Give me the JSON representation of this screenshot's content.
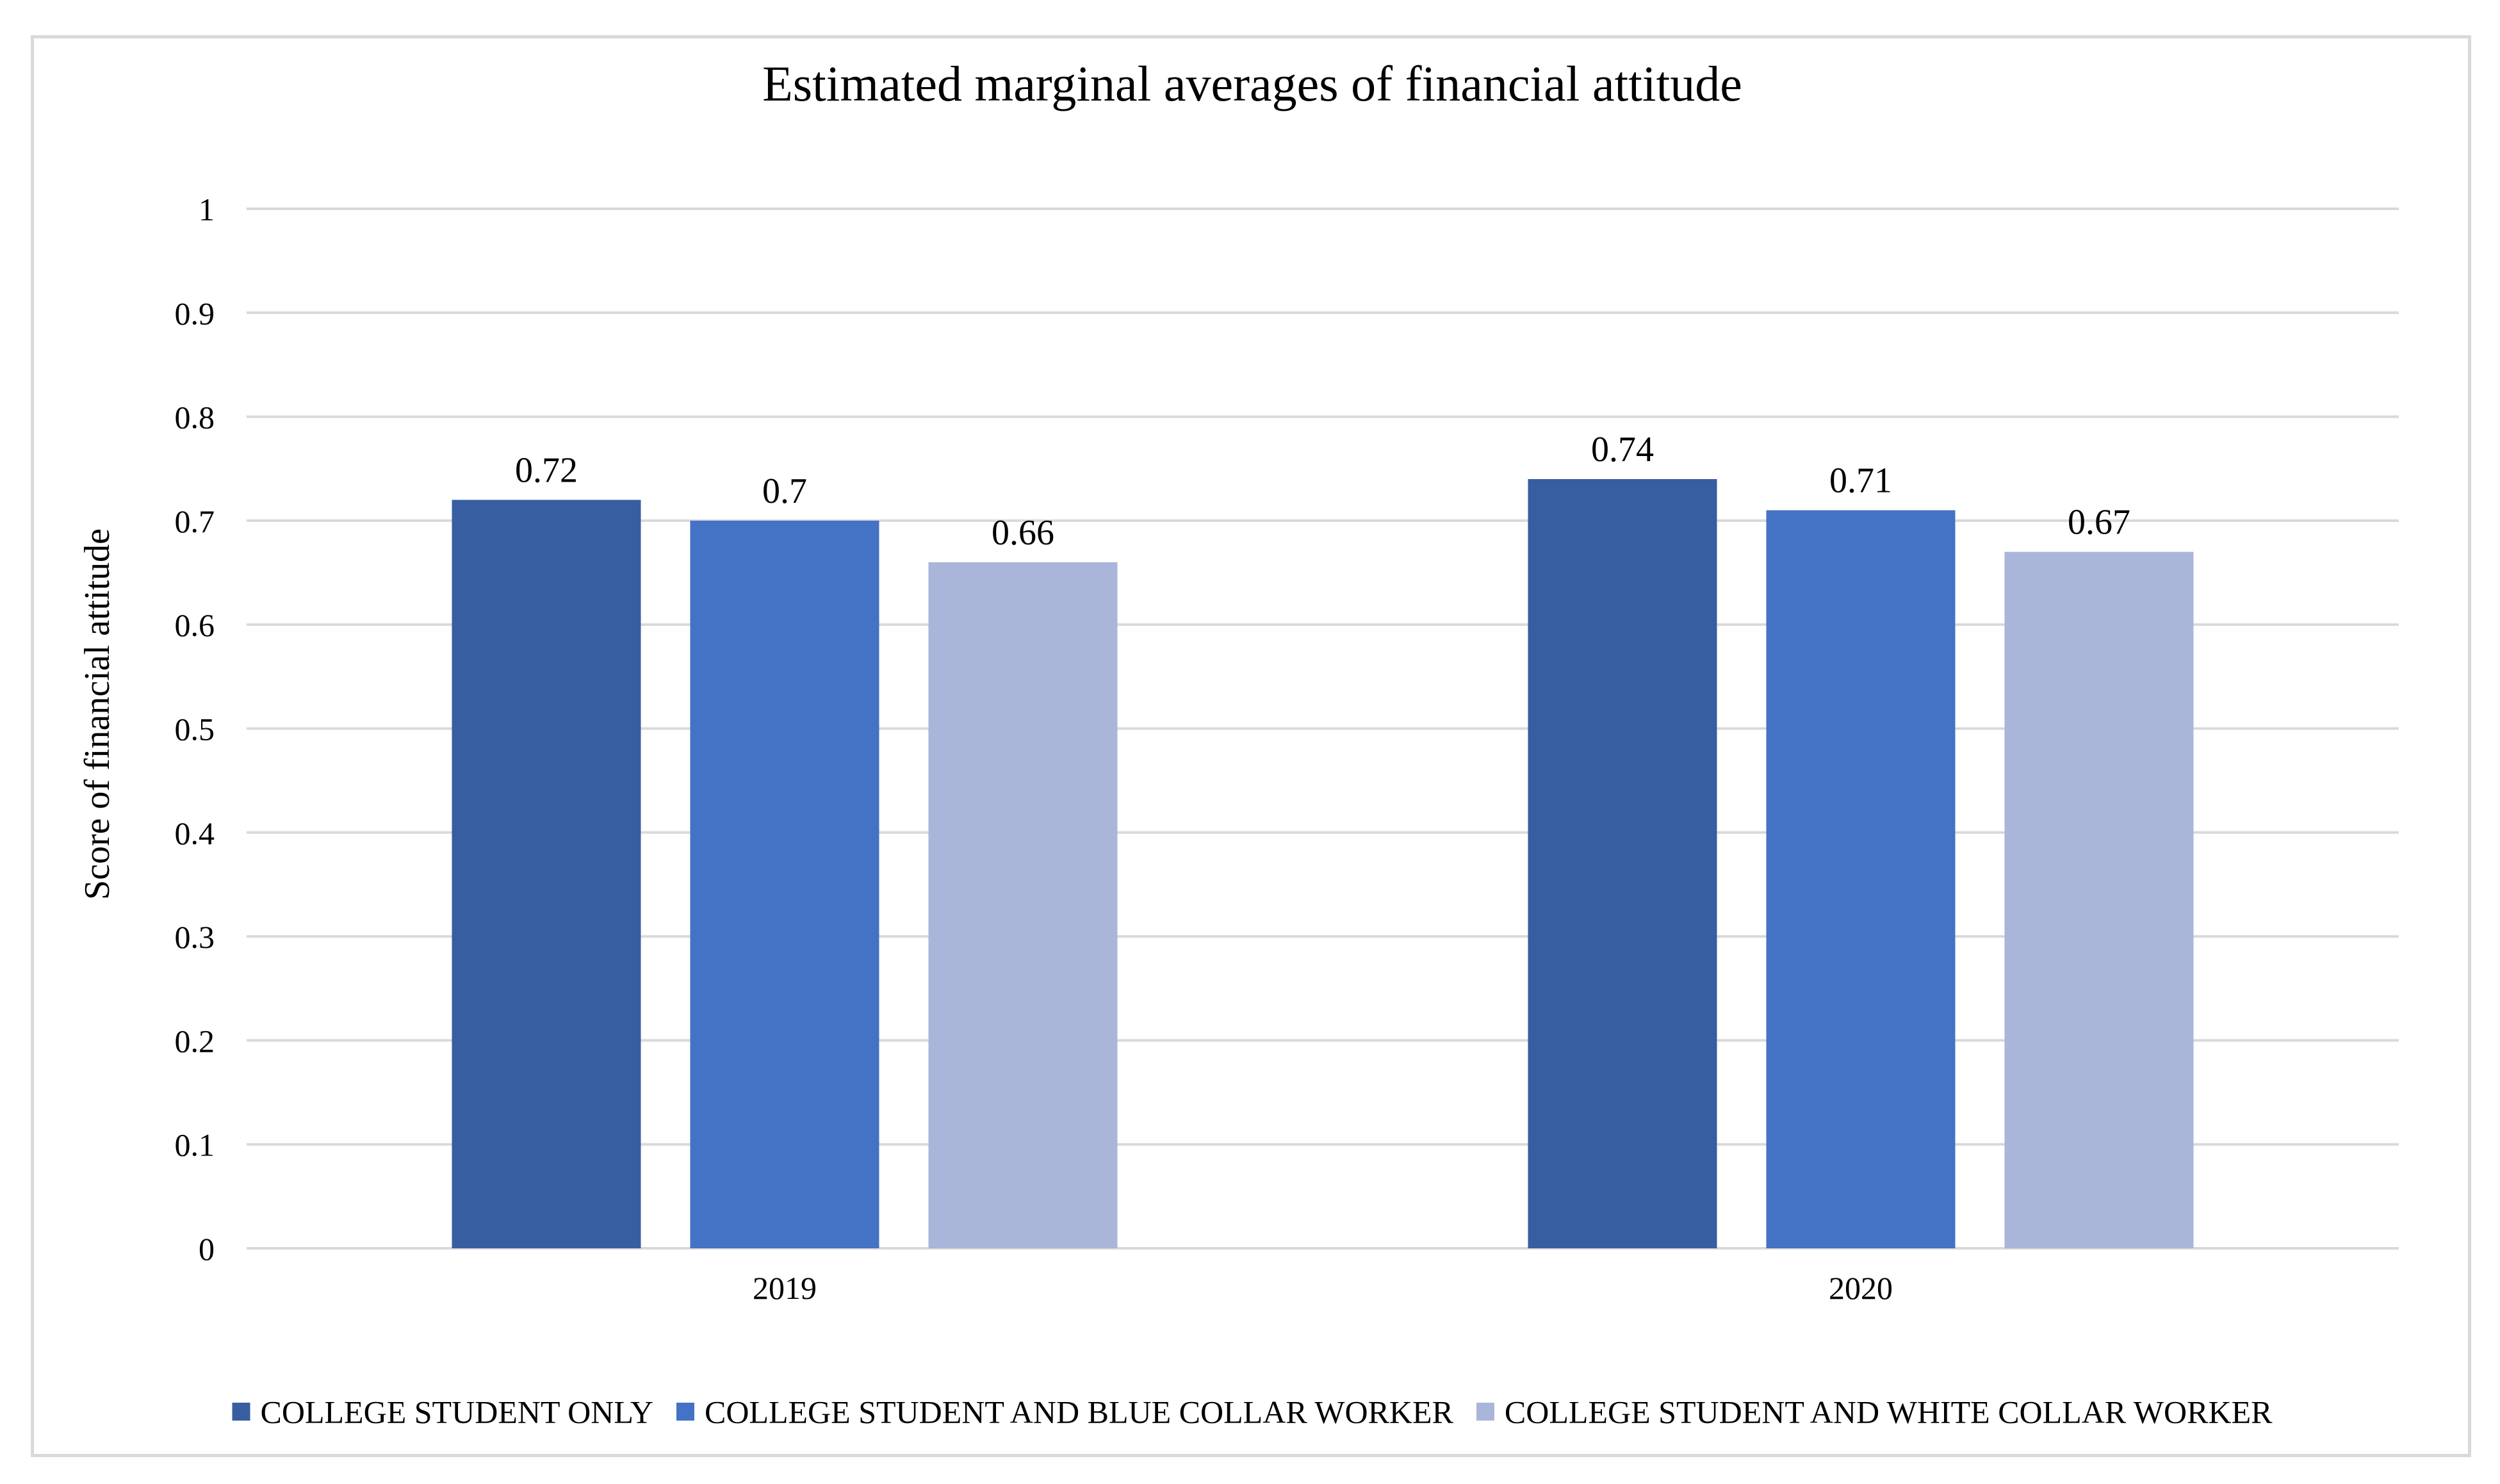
{
  "chart_data": {
    "type": "bar",
    "title": "Estimated marginal averages of financial attitude",
    "xlabel": "",
    "ylabel": "Score of financial  attitude",
    "ylim": [
      0,
      1
    ],
    "yticks": [
      "0",
      "0.1",
      "0.2",
      "0.3",
      "0.4",
      "0.5",
      "0.6",
      "0.7",
      "0.8",
      "0.9",
      "1"
    ],
    "grid": true,
    "legend_position": "bottom",
    "categories": [
      "2019",
      "2020"
    ],
    "series": [
      {
        "name": "COLLEGE STUDENT ONLY",
        "color": "#375ea1",
        "values": [
          0.72,
          0.74
        ],
        "labels": [
          "0.72",
          "0.74"
        ]
      },
      {
        "name": "COLLEGE STUDENT AND BLUE COLLAR WORKER",
        "color": "#4472c4",
        "values": [
          0.7,
          0.71
        ],
        "labels": [
          "0.7",
          "0.71"
        ]
      },
      {
        "name": "COLLEGE STUDENT AND WHITE COLLAR WORKER",
        "color": "#a9b6da",
        "values": [
          0.66,
          0.67
        ],
        "labels": [
          "0.66",
          "0.67"
        ]
      }
    ]
  }
}
